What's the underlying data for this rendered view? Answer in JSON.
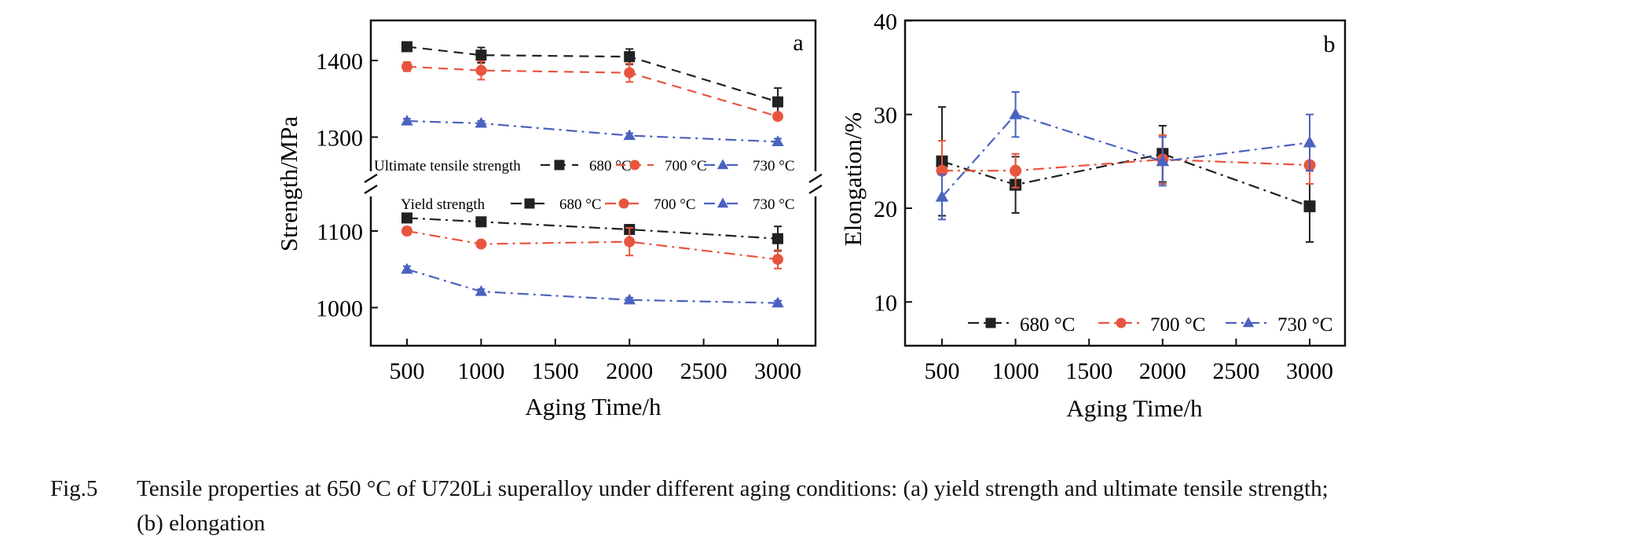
{
  "chart_data": [
    {
      "type": "line",
      "panel_label": "a",
      "xlabel": "Aging Time/h",
      "ylabel": "Strength/MPa",
      "x_ticks": [
        "500",
        "1000",
        "1500",
        "2000",
        "2500",
        "3000"
      ],
      "y_ticks_upper": [
        "1300",
        "1400"
      ],
      "y_ticks_lower": [
        "1000",
        "1100"
      ],
      "axis_break": true,
      "legend_ultimate": {
        "title": "Ultimate tensile strength",
        "entries": [
          "680 °C",
          "700 °C",
          "730 °C"
        ]
      },
      "legend_yield": {
        "title": "Yield strength",
        "entries": [
          "680 °C",
          "700 °C",
          "730 °C"
        ]
      },
      "x": [
        500,
        1000,
        2000,
        3000
      ],
      "series": [
        {
          "group": "ultimate",
          "label": "680 °C",
          "color": "#222222",
          "marker": "square",
          "dash": "dash",
          "values": [
            1418,
            1407,
            1405,
            1346
          ],
          "errors": [
            4,
            10,
            10,
            18
          ]
        },
        {
          "group": "ultimate",
          "label": "700 °C",
          "color": "#e8553e",
          "marker": "circle",
          "dash": "dash",
          "values": [
            1392,
            1387,
            1384,
            1327
          ],
          "errors": [
            6,
            12,
            12,
            4
          ]
        },
        {
          "group": "ultimate",
          "label": "730 °C",
          "color": "#4a62c0",
          "marker": "triangle",
          "dash": "dashdot",
          "values": [
            1321,
            1318,
            1302,
            1294
          ],
          "errors": [
            3,
            3,
            3,
            4
          ]
        },
        {
          "group": "yield",
          "label": "680 °C",
          "color": "#222222",
          "marker": "square",
          "dash": "dashdot",
          "values": [
            1117,
            1112,
            1102,
            1090
          ],
          "errors": [
            3,
            3,
            6,
            16
          ]
        },
        {
          "group": "yield",
          "label": "700 °C",
          "color": "#e8553e",
          "marker": "circle",
          "dash": "dashdot",
          "values": [
            1100,
            1083,
            1086,
            1063
          ],
          "errors": [
            5,
            4,
            18,
            12
          ]
        },
        {
          "group": "yield",
          "label": "730 °C",
          "color": "#4a62c0",
          "marker": "triangle",
          "dash": "dashdot",
          "values": [
            1050,
            1021,
            1010,
            1006
          ],
          "errors": [
            4,
            3,
            3,
            3
          ]
        }
      ]
    },
    {
      "type": "line",
      "panel_label": "b",
      "xlabel": "Aging Time/h",
      "ylabel": "Elongation/%",
      "x_ticks": [
        "500",
        "1000",
        "1500",
        "2000",
        "2500",
        "3000"
      ],
      "y_ticks": [
        "10",
        "20",
        "30",
        "40"
      ],
      "xlim": [
        260,
        3250
      ],
      "ylim": [
        5,
        40
      ],
      "legend": [
        "680 °C",
        "700 °C",
        "730 °C"
      ],
      "x": [
        500,
        1000,
        2000,
        3000
      ],
      "series": [
        {
          "label": "680 °C",
          "color": "#222222",
          "marker": "square",
          "dash": "dashdot",
          "values": [
            25.0,
            22.5,
            25.8,
            20.2
          ],
          "errors": [
            5.8,
            3.0,
            3.0,
            3.8
          ]
        },
        {
          "label": "700 °C",
          "color": "#e8553e",
          "marker": "circle",
          "dash": "dashdot",
          "values": [
            24.0,
            24.0,
            25.2,
            24.6
          ],
          "errors": [
            3.2,
            1.8,
            2.6,
            2.0
          ]
        },
        {
          "label": "730 °C",
          "color": "#4a62c0",
          "marker": "triangle",
          "dash": "dashdot",
          "values": [
            21.2,
            30.0,
            25.0,
            27.0
          ],
          "errors": [
            2.4,
            2.4,
            2.6,
            3.0
          ]
        }
      ]
    }
  ],
  "caption": {
    "label": "Fig.5",
    "line1": "Tensile properties at 650 °C of U720Li superalloy under different aging conditions: (a) yield strength and ultimate tensile strength;",
    "line2": "(b) elongation"
  }
}
